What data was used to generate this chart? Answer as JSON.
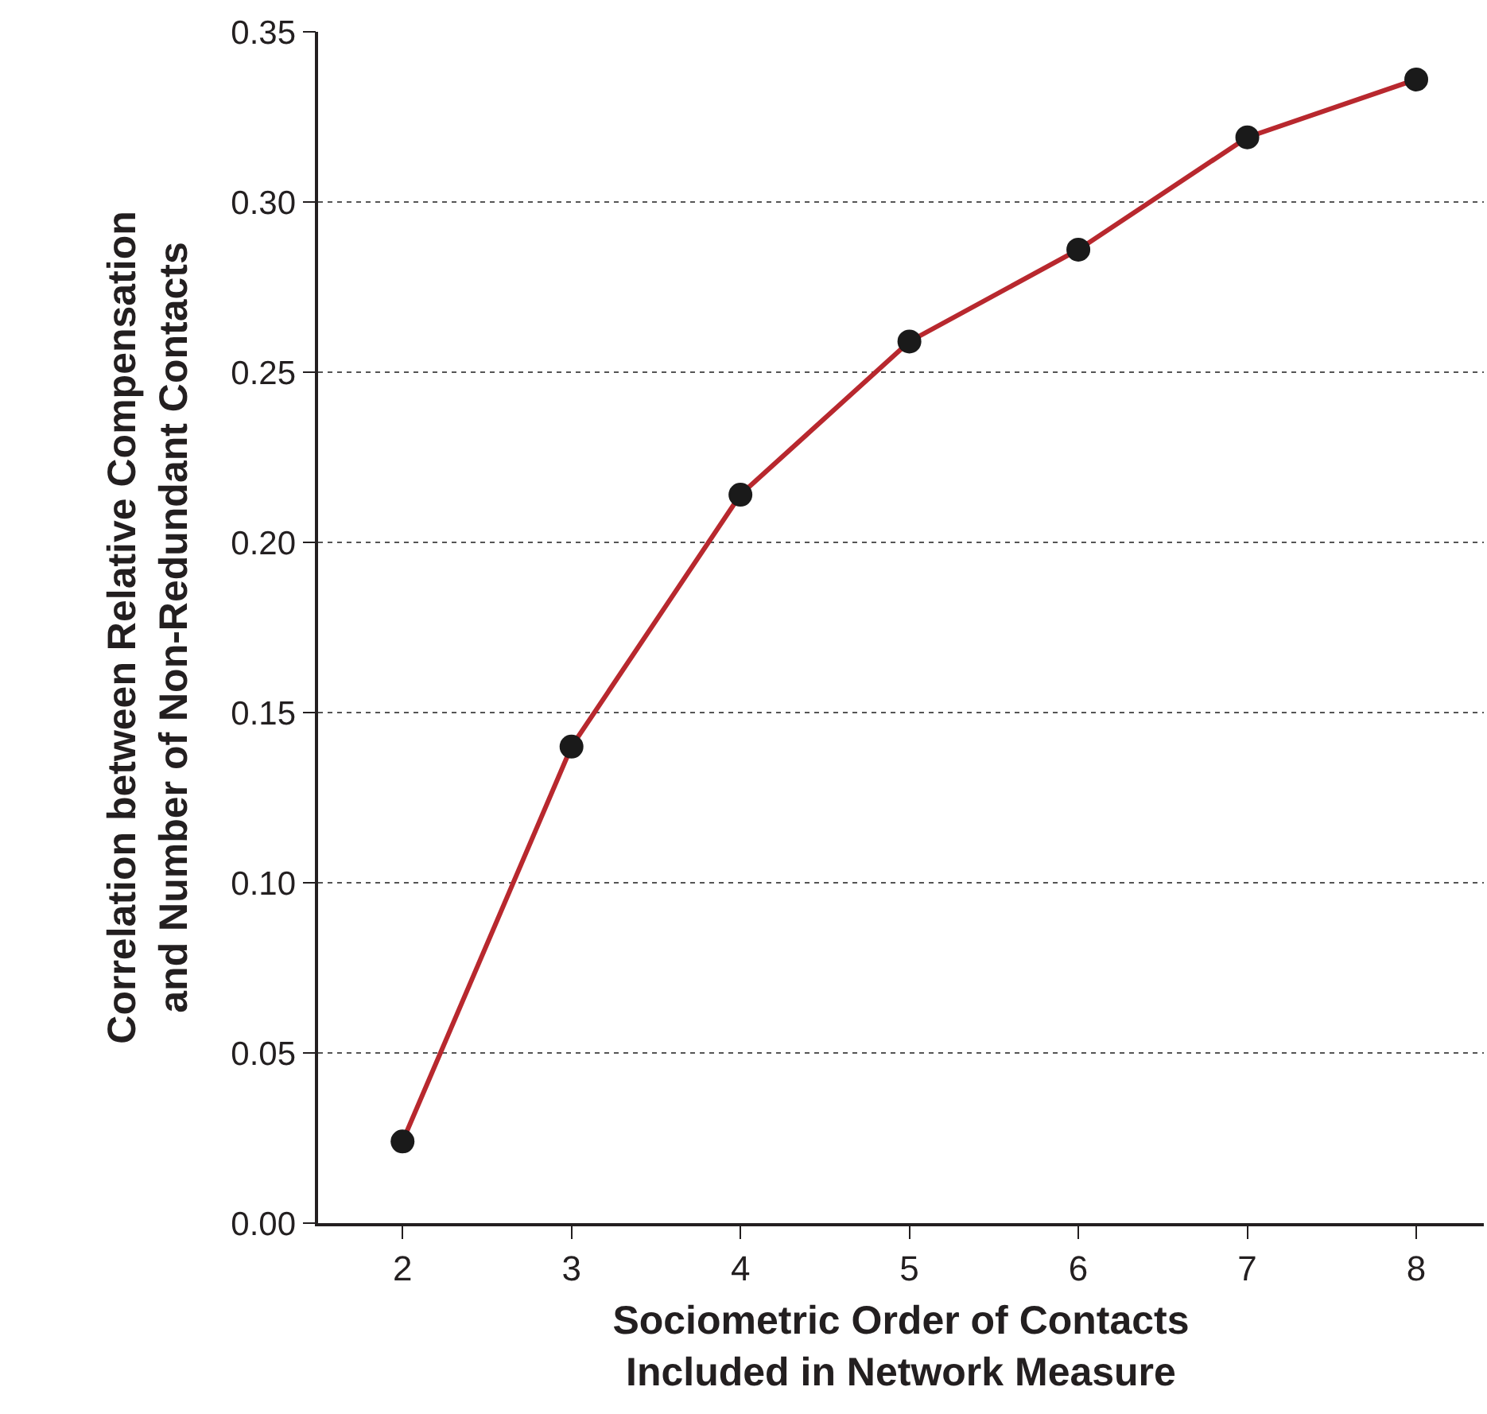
{
  "chart_data": {
    "type": "line",
    "xlabel": "Sociometric Order of Contacts\nIncluded in Network Measure",
    "ylabel": "Correlation between Relative Compensation\nand Number of Non-Redundant Contacts",
    "x": [
      2,
      3,
      4,
      5,
      6,
      7,
      8
    ],
    "series": [
      {
        "color": "#b8282e",
        "values": [
          0.024,
          0.14,
          0.214,
          0.259,
          0.286,
          0.319,
          0.336
        ]
      }
    ],
    "xlim": [
      1.5,
      8.4
    ],
    "xticks": [
      2,
      3,
      4,
      5,
      6,
      7,
      8
    ],
    "ylim": [
      0,
      0.35
    ],
    "yticks": [
      {
        "value": 0,
        "label": "0.00"
      },
      {
        "value": 0.05,
        "label": "0.05"
      },
      {
        "value": 0.1,
        "label": "0.10"
      },
      {
        "value": 0.15,
        "label": "0.15"
      },
      {
        "value": 0.2,
        "label": "0.20"
      },
      {
        "value": 0.25,
        "label": "0.25"
      },
      {
        "value": 0.3,
        "label": "0.30"
      },
      {
        "value": 0.35,
        "label": "0.35"
      }
    ],
    "grid": "y",
    "marker": "circle",
    "line_style": "solid",
    "legend": false
  }
}
